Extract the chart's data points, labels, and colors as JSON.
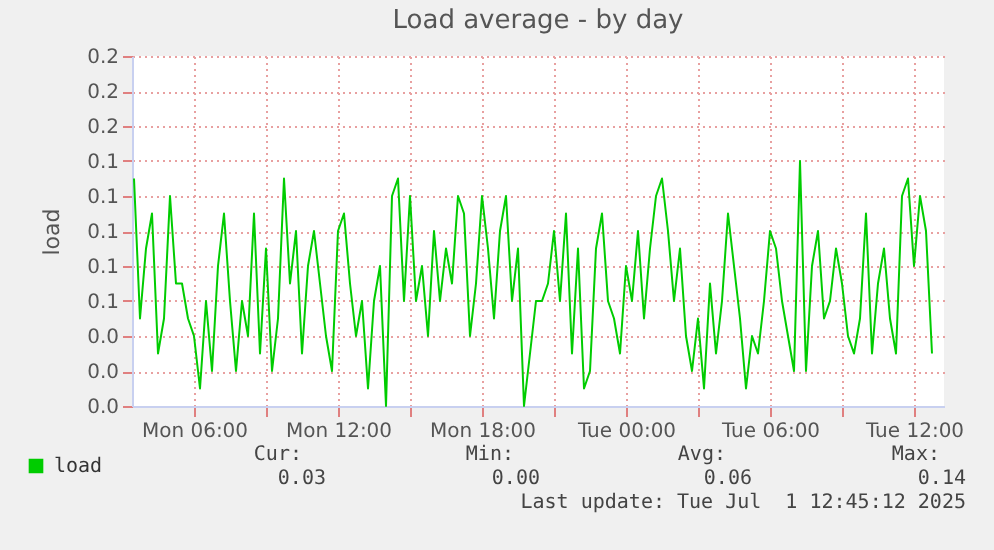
{
  "chart_data": {
    "type": "line",
    "title": "Load average - by day",
    "ylabel": "load",
    "x": [
      "2025-06-30T03:30",
      "2025-06-30T03:45",
      "2025-06-30T04:00",
      "2025-06-30T04:15",
      "2025-06-30T04:30",
      "2025-06-30T04:45",
      "2025-06-30T05:00",
      "2025-06-30T05:15",
      "2025-06-30T05:30",
      "2025-06-30T05:45",
      "2025-06-30T06:00",
      "2025-06-30T06:15",
      "2025-06-30T06:30",
      "2025-06-30T06:45",
      "2025-06-30T07:00",
      "2025-06-30T07:15",
      "2025-06-30T07:30",
      "2025-06-30T07:45",
      "2025-06-30T08:00",
      "2025-06-30T08:15",
      "2025-06-30T08:30",
      "2025-06-30T08:45",
      "2025-06-30T09:00",
      "2025-06-30T09:15",
      "2025-06-30T09:30",
      "2025-06-30T09:45",
      "2025-06-30T10:00",
      "2025-06-30T10:15",
      "2025-06-30T10:30",
      "2025-06-30T10:45",
      "2025-06-30T11:00",
      "2025-06-30T11:15",
      "2025-06-30T11:30",
      "2025-06-30T11:45",
      "2025-06-30T12:00",
      "2025-06-30T12:15",
      "2025-06-30T12:30",
      "2025-06-30T12:45",
      "2025-06-30T13:00",
      "2025-06-30T13:15",
      "2025-06-30T13:30",
      "2025-06-30T13:45",
      "2025-06-30T14:00",
      "2025-06-30T14:15",
      "2025-06-30T14:30",
      "2025-06-30T14:45",
      "2025-06-30T15:00",
      "2025-06-30T15:15",
      "2025-06-30T15:30",
      "2025-06-30T15:45",
      "2025-06-30T16:00",
      "2025-06-30T16:15",
      "2025-06-30T16:30",
      "2025-06-30T16:45",
      "2025-06-30T17:00",
      "2025-06-30T17:15",
      "2025-06-30T17:30",
      "2025-06-30T17:45",
      "2025-06-30T18:00",
      "2025-06-30T18:15",
      "2025-06-30T18:30",
      "2025-06-30T18:45",
      "2025-06-30T19:00",
      "2025-06-30T19:15",
      "2025-06-30T19:30",
      "2025-06-30T19:45",
      "2025-06-30T20:00",
      "2025-06-30T20:15",
      "2025-06-30T20:30",
      "2025-06-30T20:45",
      "2025-06-30T21:00",
      "2025-06-30T21:15",
      "2025-06-30T21:30",
      "2025-06-30T21:45",
      "2025-06-30T22:00",
      "2025-06-30T22:15",
      "2025-06-30T22:30",
      "2025-06-30T22:45",
      "2025-06-30T23:00",
      "2025-06-30T23:15",
      "2025-06-30T23:30",
      "2025-06-30T23:45",
      "2025-07-01T00:00",
      "2025-07-01T00:15",
      "2025-07-01T00:30",
      "2025-07-01T00:45",
      "2025-07-01T01:00",
      "2025-07-01T01:15",
      "2025-07-01T01:30",
      "2025-07-01T01:45",
      "2025-07-01T02:00",
      "2025-07-01T02:15",
      "2025-07-01T02:30",
      "2025-07-01T02:45",
      "2025-07-01T03:00",
      "2025-07-01T03:15",
      "2025-07-01T03:30",
      "2025-07-01T03:45",
      "2025-07-01T04:00",
      "2025-07-01T04:15",
      "2025-07-01T04:30",
      "2025-07-01T04:45",
      "2025-07-01T05:00",
      "2025-07-01T05:15",
      "2025-07-01T05:30",
      "2025-07-01T05:45",
      "2025-07-01T06:00",
      "2025-07-01T06:15",
      "2025-07-01T06:30",
      "2025-07-01T06:45",
      "2025-07-01T07:00",
      "2025-07-01T07:15",
      "2025-07-01T07:30",
      "2025-07-01T07:45",
      "2025-07-01T08:00",
      "2025-07-01T08:15",
      "2025-07-01T08:30",
      "2025-07-01T08:45",
      "2025-07-01T09:00",
      "2025-07-01T09:15",
      "2025-07-01T09:30",
      "2025-07-01T09:45",
      "2025-07-01T10:00",
      "2025-07-01T10:15",
      "2025-07-01T10:30",
      "2025-07-01T10:45",
      "2025-07-01T11:00",
      "2025-07-01T11:15",
      "2025-07-01T11:30",
      "2025-07-01T11:45",
      "2025-07-01T12:00",
      "2025-07-01T12:15",
      "2025-07-01T12:30",
      "2025-07-01T12:45"
    ],
    "series": [
      {
        "name": "load",
        "color": "#00cc00",
        "values": [
          0.13,
          0.05,
          0.09,
          0.11,
          0.03,
          0.05,
          0.12,
          0.07,
          0.07,
          0.05,
          0.04,
          0.01,
          0.06,
          0.02,
          0.08,
          0.11,
          0.06,
          0.02,
          0.06,
          0.04,
          0.11,
          0.03,
          0.09,
          0.02,
          0.05,
          0.13,
          0.07,
          0.1,
          0.03,
          0.08,
          0.1,
          0.07,
          0.04,
          0.02,
          0.1,
          0.11,
          0.07,
          0.04,
          0.06,
          0.01,
          0.06,
          0.08,
          0.0,
          0.12,
          0.13,
          0.06,
          0.12,
          0.06,
          0.08,
          0.04,
          0.1,
          0.06,
          0.09,
          0.07,
          0.12,
          0.11,
          0.04,
          0.07,
          0.12,
          0.09,
          0.05,
          0.1,
          0.12,
          0.06,
          0.09,
          0.0,
          0.03,
          0.06,
          0.06,
          0.07,
          0.1,
          0.06,
          0.11,
          0.03,
          0.09,
          0.01,
          0.02,
          0.09,
          0.11,
          0.06,
          0.05,
          0.03,
          0.08,
          0.06,
          0.1,
          0.05,
          0.09,
          0.12,
          0.13,
          0.1,
          0.06,
          0.09,
          0.04,
          0.02,
          0.05,
          0.01,
          0.07,
          0.03,
          0.06,
          0.11,
          0.08,
          0.05,
          0.01,
          0.04,
          0.03,
          0.06,
          0.1,
          0.09,
          0.06,
          0.04,
          0.02,
          0.14,
          0.02,
          0.08,
          0.1,
          0.05,
          0.06,
          0.09,
          0.07,
          0.04,
          0.03,
          0.05,
          0.11,
          0.03,
          0.07,
          0.09,
          0.05,
          0.03,
          0.12,
          0.13,
          0.08,
          0.12,
          0.1,
          0.03
        ]
      }
    ],
    "xlim": [
      "2025-06-30T03:25",
      "2025-07-01T13:15"
    ],
    "xticks": [
      {
        "value": "2025-06-30T06:00",
        "label": "Mon 06:00"
      },
      {
        "value": "2025-06-30T09:00",
        "label": null
      },
      {
        "value": "2025-06-30T12:00",
        "label": "Mon 12:00"
      },
      {
        "value": "2025-06-30T15:00",
        "label": null
      },
      {
        "value": "2025-06-30T18:00",
        "label": "Mon 18:00"
      },
      {
        "value": "2025-06-30T21:00",
        "label": null
      },
      {
        "value": "2025-07-01T00:00",
        "label": "Tue 00:00"
      },
      {
        "value": "2025-07-01T03:00",
        "label": null
      },
      {
        "value": "2025-07-01T06:00",
        "label": "Tue 06:00"
      },
      {
        "value": "2025-07-01T09:00",
        "label": null
      },
      {
        "value": "2025-07-01T12:00",
        "label": "Tue 12:00"
      }
    ],
    "ylim": [
      0,
      0.2
    ],
    "yticks": [
      {
        "value": 0,
        "label": "0.0"
      },
      {
        "value": 0.02,
        "label": "0.0"
      },
      {
        "value": 0.04,
        "label": "0.0"
      },
      {
        "value": 0.06,
        "label": "0.1"
      },
      {
        "value": 0.08,
        "label": "0.1"
      },
      {
        "value": 0.1,
        "label": "0.1"
      },
      {
        "value": 0.12,
        "label": "0.1"
      },
      {
        "value": 0.14,
        "label": "0.1"
      },
      {
        "value": 0.16,
        "label": "0.2"
      },
      {
        "value": 0.18,
        "label": "0.2"
      },
      {
        "value": 0.2,
        "label": "0.2"
      }
    ],
    "grid": true,
    "legend": "bottom left",
    "annotations": [
      "Cur:",
      "Min:",
      "Avg:",
      "Max:",
      "0.03",
      "0.00",
      "0.06",
      "0.14",
      "Last update: Tue Jul  1 12:45:12 2025"
    ]
  }
}
